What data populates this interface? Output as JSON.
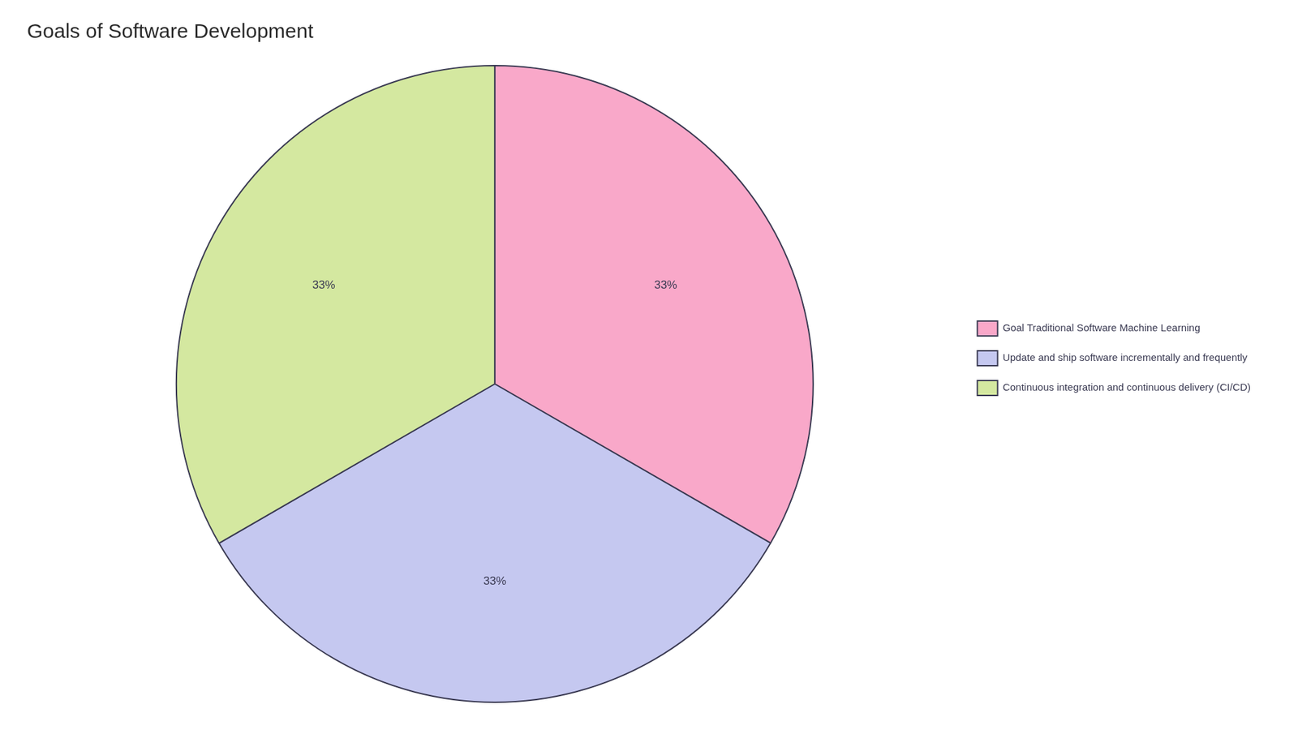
{
  "chart_data": {
    "type": "pie",
    "title": "Goals of Software Development",
    "categories": [
      "Goal Traditional Software Machine Learning",
      "Update and ship software incrementally and frequently",
      "Continuous integration and continuous delivery (CI/CD)"
    ],
    "values": [
      33.33,
      33.33,
      33.34
    ],
    "value_labels": [
      "33%",
      "33%",
      "33%"
    ],
    "colors": [
      "#F9A8C9",
      "#C5C8F0",
      "#D4E8A0"
    ],
    "data_labels": true,
    "legend": "right"
  }
}
